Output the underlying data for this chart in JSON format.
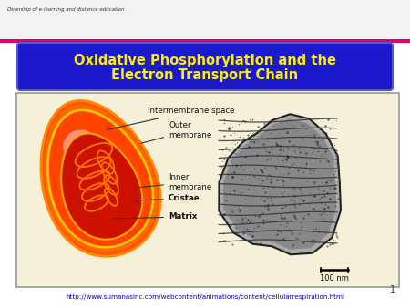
{
  "title_line1": "Oxidative Phosphorylation and the",
  "title_line2": "Electron Transport Chain",
  "title_color": "#FFEE00",
  "title_box_color": "#1A1ACC",
  "title_box_edge": "#4444EE",
  "bg_color": "#FFFFFF",
  "header_bar_color": "#DD0066",
  "diagram_bg": "#F5F0D8",
  "url_text": "http://www.sumanasinc.com/webcontent/animations/content/cellularrespiration.html",
  "url_color": "#0000BB",
  "label_color": "#111111",
  "scale_label": "100 nm",
  "page_num": "1",
  "left_logo_text2": "Deanship of e-learning and distance education"
}
